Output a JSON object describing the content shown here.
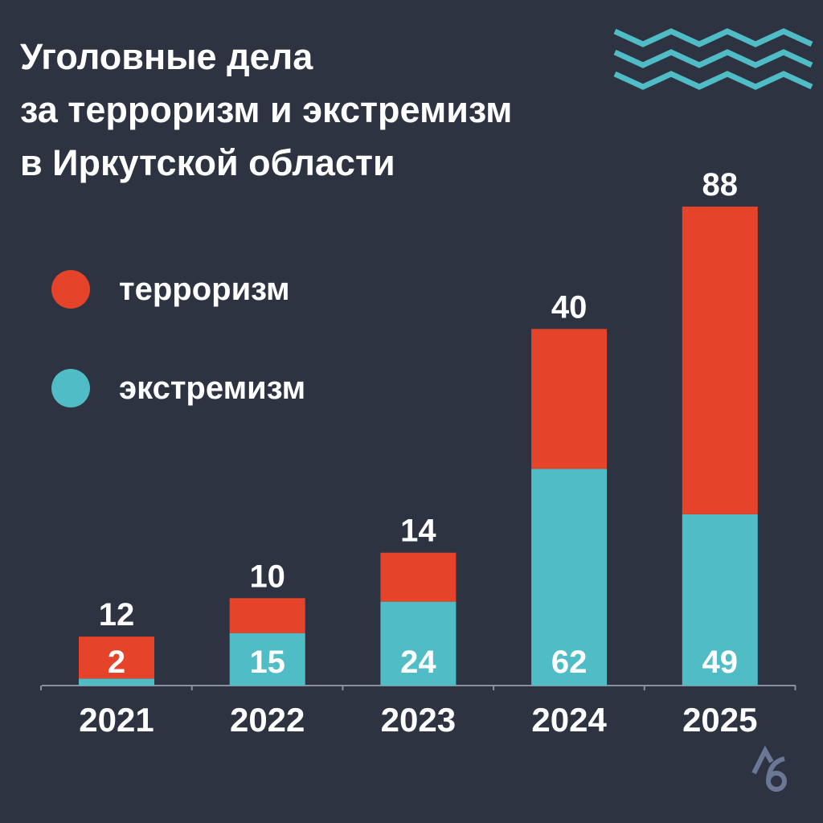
{
  "title_lines": [
    "Уголовные дела",
    "за терроризм и экстремизм",
    "в Иркутской области"
  ],
  "colors": {
    "background": "#2d3340",
    "terrorism": "#e5432a",
    "extremism": "#4fbcc6",
    "text": "#ffffff",
    "logo": "#6a7896"
  },
  "icons": {
    "decoration": "teal-zigzag-lines",
    "logo": "stylized-ab-logo"
  },
  "chart_data": {
    "type": "bar",
    "stacked": true,
    "categories": [
      "2021",
      "2022",
      "2023",
      "2024",
      "2025"
    ],
    "series": [
      {
        "name": "экстремизм",
        "values": [
          2,
          15,
          24,
          62,
          49
        ]
      },
      {
        "name": "терроризм",
        "values": [
          12,
          10,
          14,
          40,
          88
        ]
      }
    ],
    "legend_placement": "left",
    "grid": false,
    "y_axis_shown": false
  }
}
